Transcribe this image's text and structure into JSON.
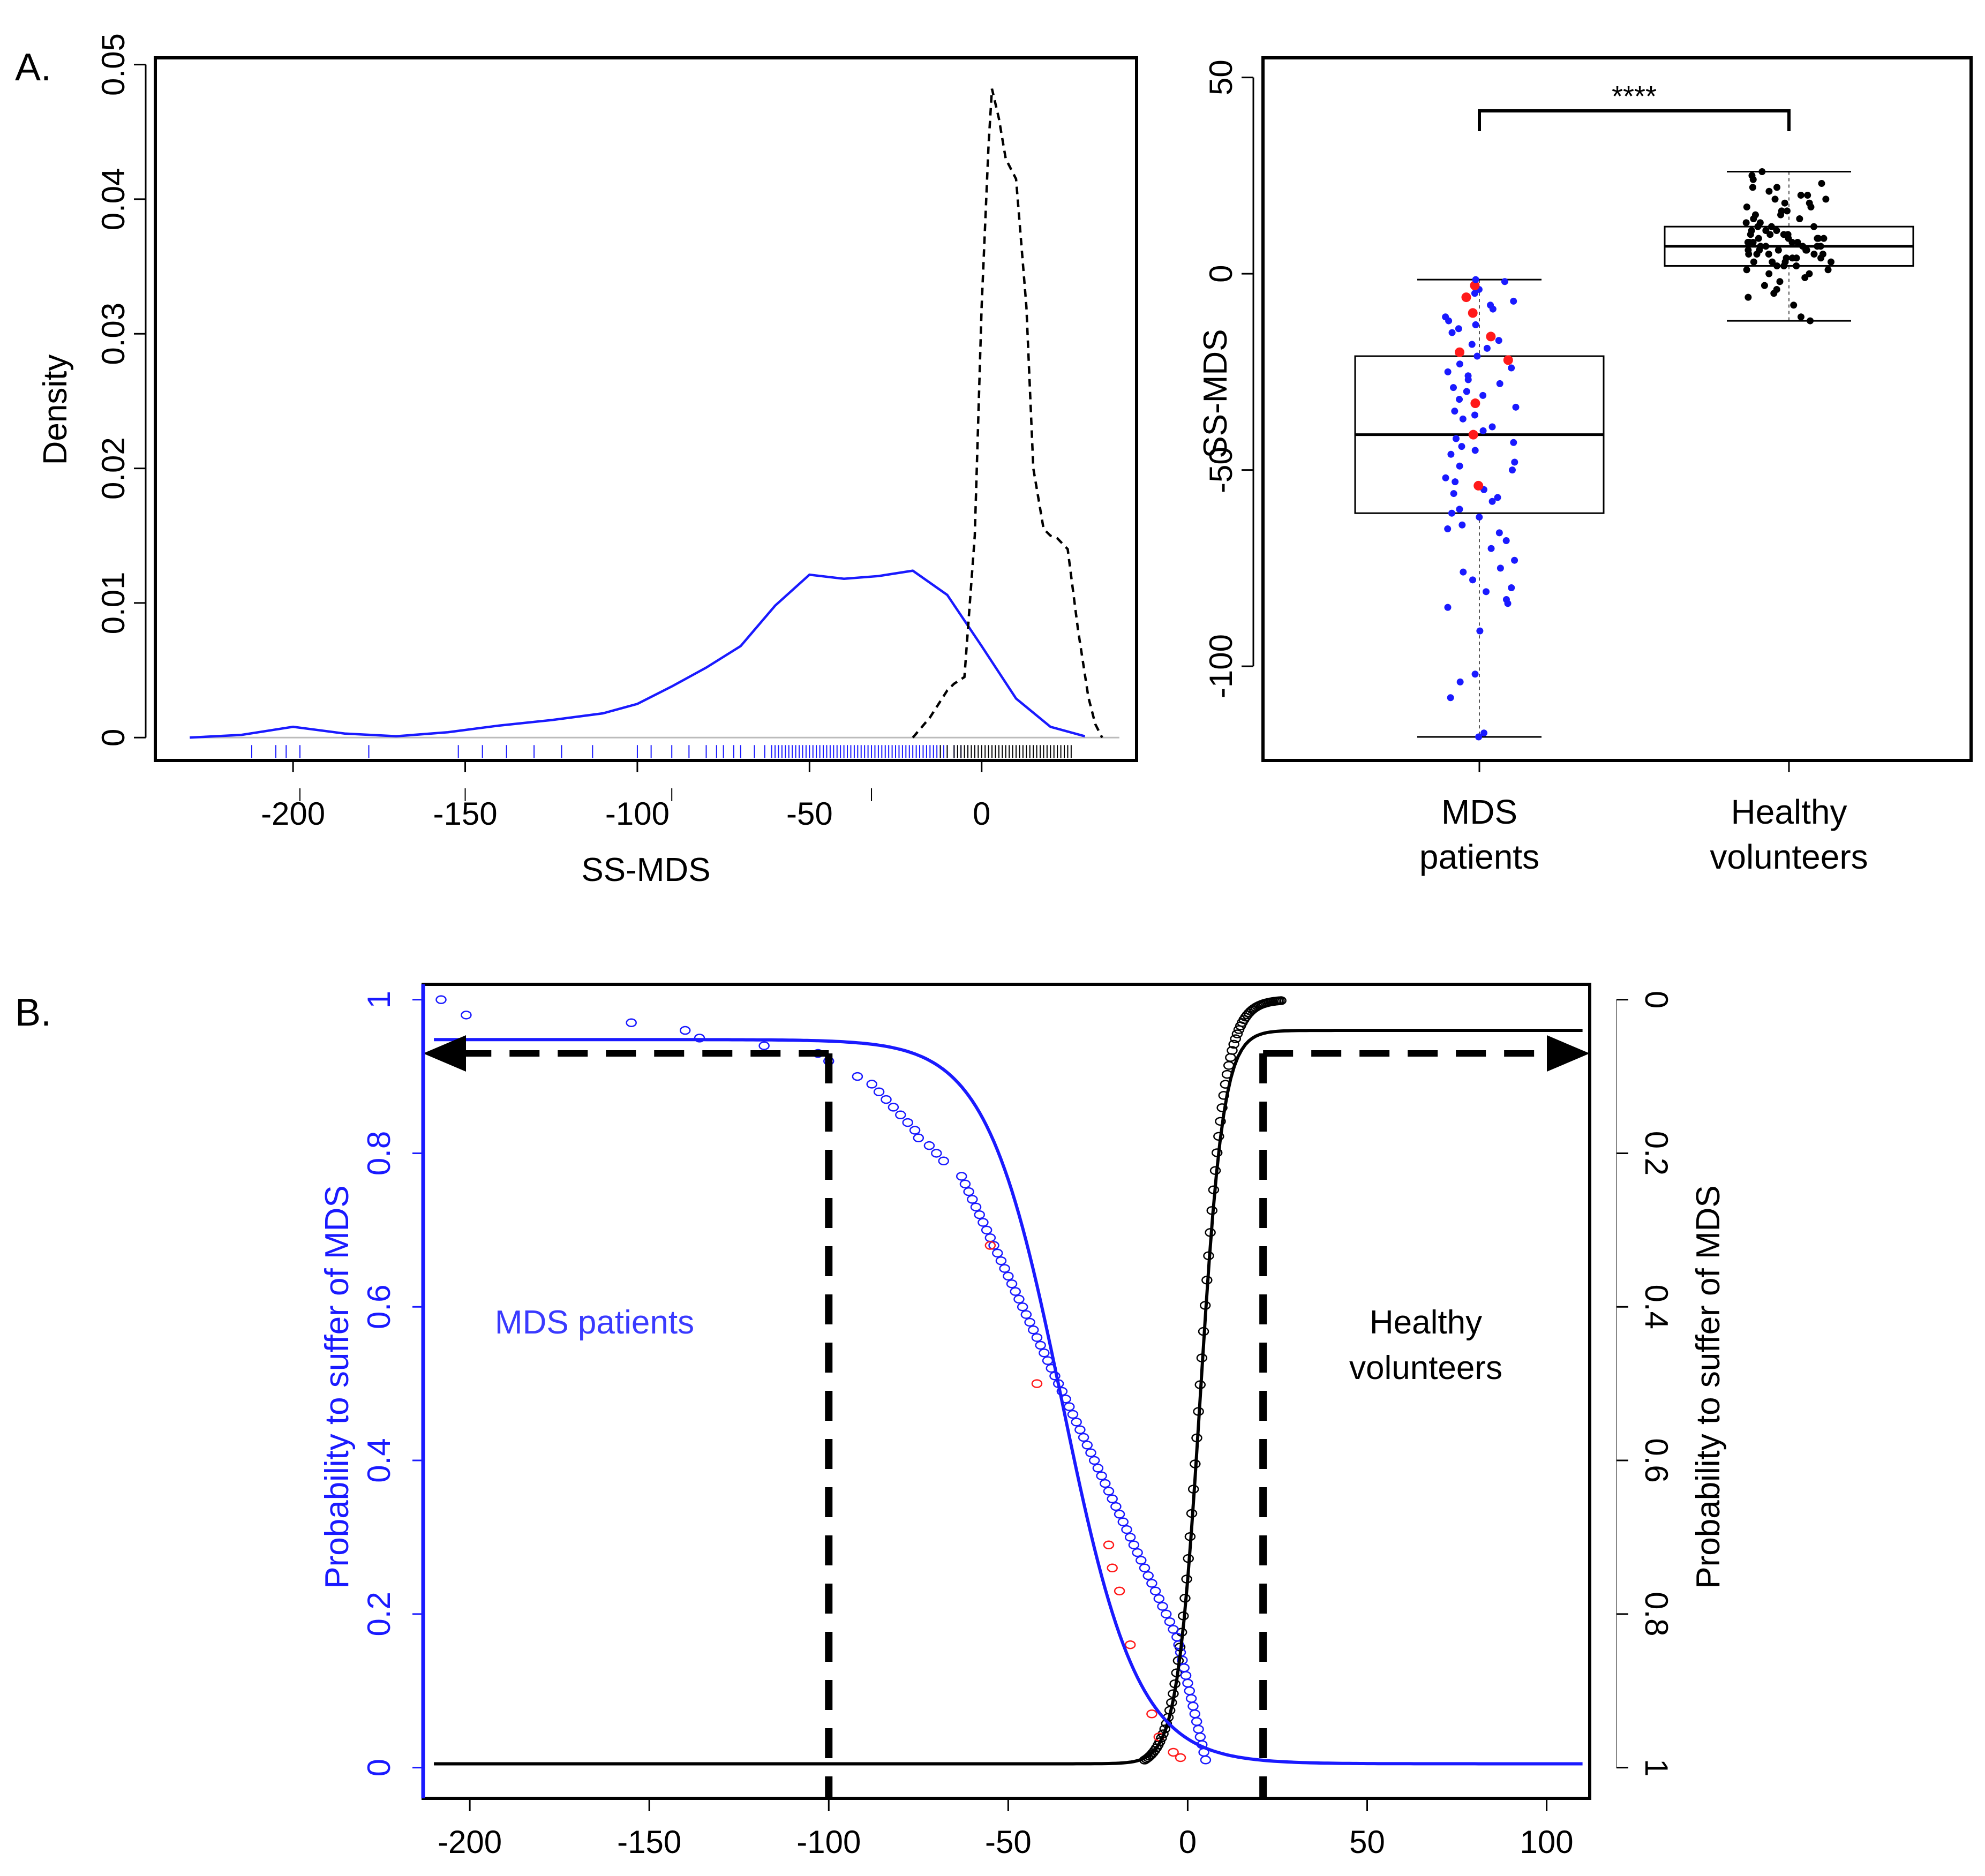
{
  "colors": {
    "mds": "#1a1aff",
    "healthy": "#000000",
    "highlight": "#ff1a1a",
    "axis": "#000000"
  },
  "chart_data": [
    {
      "panel_label": "A.",
      "type": "line",
      "subtype": "density",
      "xlabel": "SS-MDS",
      "ylabel": "Density",
      "xlim": [
        -240,
        45
      ],
      "ylim": [
        -0.0017,
        0.0505
      ],
      "x_ticks": [
        -200,
        -150,
        -100,
        -50,
        0
      ],
      "x_tick_labels": [
        "-200",
        "-150",
        "-100",
        "-50",
        "0"
      ],
      "y_ticks": [
        0,
        0.01,
        0.02,
        0.03,
        0.04,
        0.05
      ],
      "y_tick_labels": [
        "0",
        "0.01",
        "0.02",
        "0.03",
        "0.04",
        "0.05"
      ],
      "series": [
        {
          "name": "MDS patients",
          "style": "solid",
          "color": "#1a1aff",
          "x": [
            -230,
            -215,
            -200,
            -185,
            -170,
            -155,
            -140,
            -125,
            -110,
            -100,
            -90,
            -80,
            -70,
            -60,
            -50,
            -40,
            -30,
            -20,
            -10,
            0,
            10,
            20,
            30
          ],
          "y": [
            0.0,
            0.0002,
            0.0008,
            0.0003,
            0.0001,
            0.0004,
            0.0009,
            0.0013,
            0.0018,
            0.0025,
            0.0038,
            0.0052,
            0.0068,
            0.0098,
            0.0121,
            0.0118,
            0.012,
            0.0124,
            0.0106,
            0.0068,
            0.0029,
            0.0008,
            0.0001
          ]
        },
        {
          "name": "Healthy volunteers",
          "style": "dashed",
          "color": "#000000",
          "x": [
            -20,
            -15,
            -10,
            -8,
            -5,
            -2,
            0,
            2,
            3,
            5,
            7,
            10,
            13,
            15,
            18,
            20,
            22,
            25,
            28,
            31,
            33,
            35
          ],
          "y": [
            0.0,
            0.0015,
            0.0035,
            0.004,
            0.0045,
            0.015,
            0.032,
            0.044,
            0.0482,
            0.046,
            0.043,
            0.0415,
            0.032,
            0.02,
            0.0155,
            0.015,
            0.0148,
            0.014,
            0.008,
            0.003,
            0.001,
            0.0
          ]
        }
      ],
      "rug_mds": [
        -212,
        -205,
        -202,
        -198,
        -178,
        -152,
        -145,
        -138,
        -130,
        -122,
        -113,
        -100,
        -96,
        -90,
        -85,
        -80,
        -77,
        -75,
        -72,
        -70,
        -66,
        -63,
        -61,
        -60,
        -59,
        -58,
        -57,
        -56,
        -55,
        -54,
        -53,
        -52,
        -51,
        -50,
        -49,
        -48,
        -47,
        -46,
        -45,
        -44,
        -43,
        -42,
        -41,
        -40,
        -39,
        -38,
        -37,
        -36,
        -35,
        -34,
        -33,
        -32,
        -31,
        -30,
        -29,
        -28,
        -27,
        -26,
        -25,
        -24,
        -23,
        -22,
        -21,
        -20,
        -19,
        -18,
        -17,
        -16,
        -15,
        -14,
        -13,
        -12,
        -11,
        -10,
        -8,
        -6,
        -4,
        -2
      ],
      "rug_healthy": [
        -12,
        -10,
        -8,
        -7,
        -6,
        -5,
        -4,
        -3,
        -2,
        -1,
        0,
        1,
        2,
        3,
        4,
        5,
        6,
        7,
        8,
        9,
        10,
        11,
        12,
        13,
        14,
        15,
        16,
        17,
        18,
        19,
        20,
        21,
        22,
        23,
        24,
        25,
        26
      ],
      "stray_ticks_x": [
        -198,
        -150,
        -90,
        -32
      ]
    },
    {
      "type": "boxplot",
      "ylabel": "SS-MDS",
      "ylim": [
        -124,
        55
      ],
      "y_ticks": [
        50,
        0,
        -50,
        -100
      ],
      "y_tick_labels": [
        "50",
        "0",
        "-50",
        "-100"
      ],
      "categories": [
        "MDS patients",
        "Healthy volunteers"
      ],
      "category_label_lines": [
        [
          "MDS",
          "patients"
        ],
        [
          "Healthy",
          "volunteers"
        ]
      ],
      "boxes": [
        {
          "name": "MDS patients",
          "min": -118,
          "q1": -61,
          "median": -41,
          "q3": -21,
          "max": -1.5
        },
        {
          "name": "Healthy volunteers",
          "min": -12,
          "q1": 2,
          "median": 7,
          "q3": 12,
          "max": 26
        }
      ],
      "significance": "****",
      "points_mds": [
        {
          "y": -118,
          "c": "b"
        },
        {
          "y": -117,
          "c": "b"
        },
        {
          "y": -108,
          "c": "b"
        },
        {
          "y": -104,
          "c": "b"
        },
        {
          "y": -102,
          "c": "b"
        },
        {
          "y": -91,
          "c": "b"
        },
        {
          "y": -85,
          "c": "b"
        },
        {
          "y": -84,
          "c": "b"
        },
        {
          "y": -81,
          "c": "b"
        },
        {
          "y": -78,
          "c": "b"
        },
        {
          "y": -76,
          "c": "b"
        },
        {
          "y": -75,
          "c": "b"
        },
        {
          "y": -70,
          "c": "b"
        },
        {
          "y": -65,
          "c": "b"
        },
        {
          "y": -62,
          "c": "b"
        },
        {
          "y": -60,
          "c": "b"
        },
        {
          "y": -58,
          "c": "b"
        },
        {
          "y": -56,
          "c": "b"
        },
        {
          "y": -55,
          "c": "b"
        },
        {
          "y": -54,
          "c": "r"
        },
        {
          "y": -53,
          "c": "b"
        },
        {
          "y": -52,
          "c": "b"
        },
        {
          "y": -50,
          "c": "b"
        },
        {
          "y": -48,
          "c": "b"
        },
        {
          "y": -46,
          "c": "b"
        },
        {
          "y": -45,
          "c": "b"
        },
        {
          "y": -43,
          "c": "b"
        },
        {
          "y": -42,
          "c": "b"
        },
        {
          "y": -41,
          "c": "r"
        },
        {
          "y": -40,
          "c": "b"
        },
        {
          "y": -39,
          "c": "b"
        },
        {
          "y": -37,
          "c": "b"
        },
        {
          "y": -35,
          "c": "b"
        },
        {
          "y": -34,
          "c": "b"
        },
        {
          "y": -33,
          "c": "r"
        },
        {
          "y": -32,
          "c": "b"
        },
        {
          "y": -31,
          "c": "b"
        },
        {
          "y": -30,
          "c": "b"
        },
        {
          "y": -29,
          "c": "b"
        },
        {
          "y": -28,
          "c": "b"
        },
        {
          "y": -27,
          "c": "b"
        },
        {
          "y": -26,
          "c": "b"
        },
        {
          "y": -25,
          "c": "b"
        },
        {
          "y": -24,
          "c": "b"
        },
        {
          "y": -23,
          "c": "b"
        },
        {
          "y": -22,
          "c": "r"
        },
        {
          "y": -21,
          "c": "b"
        },
        {
          "y": -20,
          "c": "r"
        },
        {
          "y": -19,
          "c": "b"
        },
        {
          "y": -18,
          "c": "b"
        },
        {
          "y": -17,
          "c": "b"
        },
        {
          "y": -16,
          "c": "r"
        },
        {
          "y": -15,
          "c": "b"
        },
        {
          "y": -14,
          "c": "b"
        },
        {
          "y": -13,
          "c": "b"
        },
        {
          "y": -12,
          "c": "b"
        },
        {
          "y": -11,
          "c": "b"
        },
        {
          "y": -10,
          "c": "r"
        },
        {
          "y": -9,
          "c": "b"
        },
        {
          "y": -8,
          "c": "b"
        },
        {
          "y": -7,
          "c": "b"
        },
        {
          "y": -6,
          "c": "r"
        },
        {
          "y": -5,
          "c": "b"
        },
        {
          "y": -4,
          "c": "b"
        },
        {
          "y": -3,
          "c": "r"
        },
        {
          "y": -2,
          "c": "b"
        },
        {
          "y": -1.5,
          "c": "b"
        },
        {
          "y": -36,
          "c": "b"
        },
        {
          "y": -44,
          "c": "b"
        },
        {
          "y": -49,
          "c": "b"
        },
        {
          "y": -57,
          "c": "b"
        },
        {
          "y": -61,
          "c": "b"
        },
        {
          "y": -64,
          "c": "b"
        },
        {
          "y": -66,
          "c": "b"
        },
        {
          "y": -68,
          "c": "b"
        },
        {
          "y": -73,
          "c": "b"
        },
        {
          "y": -80,
          "c": "b"
        },
        {
          "y": -83,
          "c": "b"
        }
      ],
      "points_healthy": [
        -12,
        -11,
        -8,
        -6,
        -5,
        -4,
        -3,
        -2,
        -1,
        0,
        0,
        1,
        1,
        2,
        2,
        2,
        3,
        3,
        3,
        4,
        4,
        4,
        5,
        5,
        5,
        5,
        6,
        6,
        6,
        6,
        7,
        7,
        7,
        7,
        7,
        8,
        8,
        8,
        8,
        9,
        9,
        9,
        9,
        10,
        10,
        10,
        11,
        11,
        11,
        12,
        12,
        12,
        13,
        13,
        14,
        14,
        15,
        15,
        16,
        16,
        17,
        17,
        18,
        18,
        19,
        19,
        20,
        20,
        21,
        22,
        22,
        23,
        24,
        25,
        26,
        3,
        5,
        8,
        10,
        6,
        4,
        9
      ],
      "x_jitter_seed": 7
    },
    {
      "panel_label": "B.",
      "type": "scatter",
      "subtype": "logistic-fit",
      "xlim": [
        -213,
        112
      ],
      "ylim_left": [
        -0.04,
        1.02
      ],
      "ylim_right": [
        1.04,
        -0.02
      ],
      "x_ticks": [
        -200,
        -150,
        -100,
        -50,
        0,
        50,
        100
      ],
      "x_tick_labels": [
        "-200",
        "-150",
        "-100",
        "-50",
        "0",
        "50",
        "100"
      ],
      "y_left_ticks": [
        0,
        0.2,
        0.4,
        0.6,
        0.8,
        1
      ],
      "y_left_tick_labels": [
        "0",
        "0.2",
        "0.4",
        "0.6",
        "0.8",
        "1"
      ],
      "y_right_ticks": [
        0,
        0.2,
        0.4,
        0.6,
        0.8,
        1
      ],
      "y_right_tick_labels": [
        "0",
        "0.2",
        "0.4",
        "0.6",
        "0.8",
        "1"
      ],
      "ylabel_left": "Probability to suffer of MDS",
      "ylabel_right": "Probability to suffer of MDS",
      "annotation_mds": "MDS patients",
      "annotation_healthy_lines": [
        "Healthy",
        "volunteers"
      ],
      "mds_fit": {
        "type": "logistic",
        "top": 0.948,
        "bottom": 0.005,
        "midpoint": -35,
        "scale": 10.5,
        "color": "#1a1aff"
      },
      "healthy_fit": {
        "type": "logistic",
        "top": 0.96,
        "bottom": 0.005,
        "midpoint": 3.5,
        "scale": 3.2,
        "color": "#000000"
      },
      "cutoffs": [
        -100,
        21
      ],
      "cutoff_level_left": 0.93,
      "cutoff_level_right": 0.93,
      "points_mds": [
        [
          -208,
          1.0
        ],
        [
          -201,
          0.98
        ],
        [
          -155,
          0.97
        ],
        [
          -140,
          0.96
        ],
        [
          -136,
          0.95
        ],
        [
          -118,
          0.94
        ],
        [
          -103,
          0.93
        ],
        [
          -100,
          0.92
        ],
        [
          -92,
          0.9
        ],
        [
          -88,
          0.89
        ],
        [
          -86,
          0.88
        ],
        [
          -84,
          0.87
        ],
        [
          -82,
          0.86
        ],
        [
          -80,
          0.85
        ],
        [
          -78,
          0.84
        ],
        [
          -76,
          0.83
        ],
        [
          -75,
          0.82
        ],
        [
          -72,
          0.81
        ],
        [
          -70,
          0.8
        ],
        [
          -68,
          0.79
        ],
        [
          -63,
          0.77
        ],
        [
          -62,
          0.76
        ],
        [
          -61,
          0.75
        ],
        [
          -60,
          0.74
        ],
        [
          -59,
          0.73
        ],
        [
          -58,
          0.72
        ],
        [
          -57,
          0.71
        ],
        [
          -56,
          0.7
        ],
        [
          -55,
          0.69
        ],
        [
          -54,
          0.68
        ],
        [
          -53,
          0.67
        ],
        [
          -52,
          0.66
        ],
        [
          -51,
          0.65
        ],
        [
          -50,
          0.64
        ],
        [
          -49,
          0.63
        ],
        [
          -48,
          0.62
        ],
        [
          -47,
          0.61
        ],
        [
          -46,
          0.6
        ],
        [
          -45,
          0.59
        ],
        [
          -44,
          0.58
        ],
        [
          -43,
          0.57
        ],
        [
          -42,
          0.56
        ],
        [
          -41,
          0.55
        ],
        [
          -40,
          0.54
        ],
        [
          -39,
          0.53
        ],
        [
          -38,
          0.52
        ],
        [
          -37,
          0.51
        ],
        [
          -36,
          0.5
        ],
        [
          -35,
          0.49
        ],
        [
          -34,
          0.48
        ],
        [
          -33,
          0.47
        ],
        [
          -32,
          0.46
        ],
        [
          -31,
          0.45
        ],
        [
          -30,
          0.44
        ],
        [
          -29,
          0.43
        ],
        [
          -28,
          0.42
        ],
        [
          -27,
          0.41
        ],
        [
          -26,
          0.4
        ],
        [
          -25,
          0.39
        ],
        [
          -24,
          0.38
        ],
        [
          -23,
          0.37
        ],
        [
          -22,
          0.36
        ],
        [
          -21,
          0.35
        ],
        [
          -20,
          0.34
        ],
        [
          -19,
          0.33
        ],
        [
          -18,
          0.32
        ],
        [
          -17,
          0.31
        ],
        [
          -16,
          0.3
        ],
        [
          -15,
          0.29
        ],
        [
          -14,
          0.28
        ],
        [
          -13,
          0.27
        ],
        [
          -12,
          0.26
        ],
        [
          -11,
          0.25
        ],
        [
          -10,
          0.24
        ],
        [
          -9,
          0.23
        ],
        [
          -8,
          0.22
        ],
        [
          -7,
          0.21
        ],
        [
          -6,
          0.2
        ],
        [
          -5,
          0.19
        ],
        [
          -4,
          0.18
        ],
        [
          -3,
          0.17
        ],
        [
          -2.5,
          0.16
        ],
        [
          -2,
          0.15
        ],
        [
          -1.5,
          0.14
        ],
        [
          -1,
          0.13
        ],
        [
          -0.5,
          0.12
        ],
        [
          0,
          0.11
        ],
        [
          0.5,
          0.1
        ],
        [
          1,
          0.09
        ],
        [
          1.5,
          0.08
        ],
        [
          2,
          0.07
        ],
        [
          2.5,
          0.06
        ],
        [
          3,
          0.05
        ],
        [
          3.5,
          0.04
        ],
        [
          4,
          0.03
        ],
        [
          4.5,
          0.02
        ],
        [
          5,
          0.01
        ]
      ],
      "points_mds_red": [
        [
          -55,
          0.68
        ],
        [
          -42,
          0.5
        ],
        [
          -22,
          0.29
        ],
        [
          -21,
          0.26
        ],
        [
          -19,
          0.23
        ],
        [
          -16,
          0.16
        ],
        [
          -10,
          0.07
        ],
        [
          -8,
          0.04
        ],
        [
          -4,
          0.02
        ],
        [
          -2,
          0.013
        ]
      ],
      "healthy_points_n": 82,
      "healthy_points_range": [
        -12,
        26
      ]
    }
  ]
}
